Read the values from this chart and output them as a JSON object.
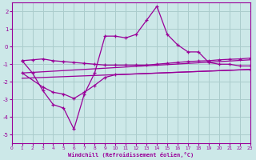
{
  "xlabel": "Windchill (Refroidissement éolien,°C)",
  "bg_color": "#cce8e8",
  "grid_color": "#aacccc",
  "line_color": "#990099",
  "xlim": [
    0,
    23
  ],
  "ylim": [
    -5.5,
    2.5
  ],
  "xticks": [
    0,
    1,
    2,
    3,
    4,
    5,
    6,
    7,
    8,
    9,
    10,
    11,
    12,
    13,
    14,
    15,
    16,
    17,
    18,
    19,
    20,
    21,
    22,
    23
  ],
  "yticks": [
    -5,
    -4,
    -3,
    -2,
    -1,
    0,
    1,
    2
  ],
  "line1_x": [
    1,
    2,
    3,
    4,
    5,
    6,
    7,
    8,
    9,
    10,
    11,
    12,
    13,
    14,
    15,
    16,
    17,
    18,
    19,
    20,
    21,
    22,
    23
  ],
  "line1_y": [
    -0.8,
    -1.5,
    -2.5,
    -3.3,
    -3.5,
    -4.7,
    -2.7,
    -1.5,
    0.6,
    0.6,
    0.5,
    0.7,
    1.5,
    2.3,
    0.7,
    0.1,
    -0.3,
    -0.3,
    -0.9,
    -1.0,
    -1.0,
    -1.1,
    -1.1
  ],
  "line2_x": [
    1,
    2,
    3,
    4,
    5,
    6,
    7,
    8,
    9,
    10,
    11,
    12,
    13,
    14,
    15,
    16,
    17,
    18,
    19,
    20,
    21,
    22,
    23
  ],
  "line2_y": [
    -0.8,
    -0.75,
    -0.7,
    -0.8,
    -0.85,
    -0.9,
    -0.95,
    -1.0,
    -1.05,
    -1.05,
    -1.05,
    -1.05,
    -1.05,
    -1.0,
    -0.95,
    -0.9,
    -0.85,
    -0.82,
    -0.8,
    -0.75,
    -0.72,
    -0.7,
    -0.65
  ],
  "line3_x": [
    1,
    23
  ],
  "line3_y": [
    -1.5,
    -0.75
  ],
  "line4_x": [
    1,
    3,
    4,
    5,
    6,
    7,
    8,
    9,
    10,
    23
  ],
  "line4_y": [
    -1.5,
    -2.3,
    -2.6,
    -2.7,
    -2.95,
    -2.6,
    -2.2,
    -1.75,
    -1.6,
    -1.3
  ],
  "line5_x": [
    1,
    23
  ],
  "line5_y": [
    -1.8,
    -1.3
  ]
}
